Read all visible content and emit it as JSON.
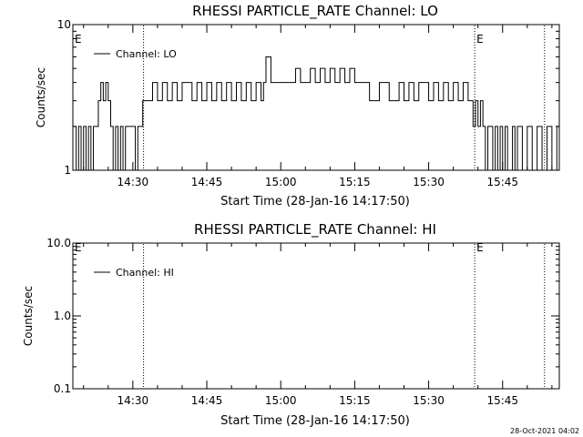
{
  "chart_data": [
    {
      "type": "line",
      "title": "RHESSI PARTICLE_RATE Channel: LO",
      "xlabel": "Start Time (28-Jan-16 14:17:50)",
      "ylabel": "Counts/sec",
      "yscale": "log",
      "ylim": [
        1,
        10
      ],
      "ytick_labels": [
        "10",
        "1"
      ],
      "xlim": [
        "14:17:50",
        "15:56:30"
      ],
      "xtick_labels": [
        "14:30",
        "14:45",
        "15:00",
        "15:15",
        "15:30",
        "15:45"
      ],
      "legend": {
        "placement": "top-left",
        "label": "Channel: LO"
      },
      "event_markers": [
        {
          "time": "14:32:10",
          "label": ""
        },
        {
          "time": "15:39:20",
          "label": "E"
        },
        {
          "time": "15:53:30",
          "label": ""
        }
      ],
      "start_marker_label": "E",
      "series": [
        {
          "x": [
            "14:17:50",
            "14:18:30",
            "14:19:00",
            "14:19:30",
            "14:20:00",
            "14:20:30",
            "14:21:00",
            "14:21:30",
            "14:22:00",
            "14:22:30",
            "14:23:00",
            "14:23:30",
            "14:24:00",
            "14:24:30",
            "14:25:00",
            "14:25:30",
            "14:26:00",
            "14:26:30",
            "14:27:00",
            "14:27:30",
            "14:28:00",
            "14:28:30",
            "14:29:00",
            "14:29:30",
            "14:30:00",
            "14:30:30",
            "14:31:00",
            "14:32:00",
            "14:33:00",
            "14:34:00",
            "14:35:00",
            "14:36:00",
            "14:37:00",
            "14:38:00",
            "14:39:00",
            "14:40:00",
            "14:41:00",
            "14:42:00",
            "14:43:00",
            "14:44:00",
            "14:45:00",
            "14:46:00",
            "14:47:00",
            "14:48:00",
            "14:49:00",
            "14:50:00",
            "14:51:00",
            "14:52:00",
            "14:53:00",
            "14:54:00",
            "14:55:00",
            "14:56:00",
            "14:56:30",
            "14:57:00",
            "14:58:00",
            "15:00:00",
            "15:02:00",
            "15:03:00",
            "15:04:00",
            "15:05:00",
            "15:06:00",
            "15:07:00",
            "15:08:00",
            "15:09:00",
            "15:10:00",
            "15:11:00",
            "15:12:00",
            "15:13:00",
            "15:14:00",
            "15:15:00",
            "15:16:00",
            "15:18:00",
            "15:20:00",
            "15:22:00",
            "15:24:00",
            "15:25:00",
            "15:26:00",
            "15:27:00",
            "15:28:00",
            "15:29:00",
            "15:30:00",
            "15:31:00",
            "15:32:00",
            "15:33:00",
            "15:34:00",
            "15:35:00",
            "15:36:00",
            "15:37:00",
            "15:38:00",
            "15:38:30",
            "15:39:00",
            "15:39:30",
            "15:40:00",
            "15:40:30",
            "15:41:00",
            "15:41:30",
            "15:42:00",
            "15:43:00",
            "15:43:30",
            "15:44:00",
            "15:44:30",
            "15:45:00",
            "15:45:30",
            "15:46:00",
            "15:47:00",
            "15:47:30",
            "15:48:00",
            "15:49:00",
            "15:50:00",
            "15:51:00",
            "15:52:00",
            "15:53:00",
            "15:54:00",
            "15:55:00",
            "15:56:00"
          ],
          "y": [
            2,
            1,
            2,
            1,
            2,
            1,
            2,
            1,
            2,
            2,
            3,
            4,
            3,
            4,
            3,
            2,
            1,
            2,
            1,
            2,
            1,
            2,
            2,
            2,
            2,
            1,
            2,
            3,
            3,
            4,
            3,
            4,
            3,
            4,
            3,
            4,
            4,
            3,
            4,
            3,
            4,
            3,
            4,
            3,
            4,
            3,
            4,
            3,
            4,
            3,
            4,
            3,
            4,
            6,
            4,
            4,
            4,
            5,
            4,
            4,
            5,
            4,
            5,
            4,
            5,
            4,
            5,
            4,
            5,
            4,
            4,
            3,
            4,
            3,
            4,
            3,
            4,
            3,
            4,
            4,
            3,
            4,
            3,
            4,
            3,
            4,
            3,
            4,
            3,
            3,
            2,
            3,
            2,
            3,
            2,
            1,
            2,
            1,
            2,
            1,
            2,
            1,
            2,
            1,
            2,
            1,
            2,
            1,
            2,
            1,
            2,
            1,
            2,
            1,
            2
          ]
        }
      ]
    },
    {
      "type": "line",
      "title": "RHESSI PARTICLE_RATE Channel: HI",
      "xlabel": "Start Time (28-Jan-16 14:17:50)",
      "ylabel": "Counts/sec",
      "yscale": "log",
      "ylim": [
        0.1,
        10
      ],
      "ytick_labels": [
        "10.0",
        "1.0",
        "0.1"
      ],
      "xlim": [
        "14:17:50",
        "15:56:30"
      ],
      "xtick_labels": [
        "14:30",
        "14:45",
        "15:00",
        "15:15",
        "15:30",
        "15:45"
      ],
      "legend": {
        "placement": "top-left",
        "label": "Channel: HI"
      },
      "event_markers": [
        {
          "time": "14:32:10",
          "label": ""
        },
        {
          "time": "15:39:20",
          "label": "E"
        },
        {
          "time": "15:53:30",
          "label": ""
        }
      ],
      "start_marker_label": "E",
      "series": [
        {
          "x": [],
          "y": []
        }
      ]
    }
  ],
  "footer": {
    "timestamp": "28-Oct-2021 04:02"
  }
}
